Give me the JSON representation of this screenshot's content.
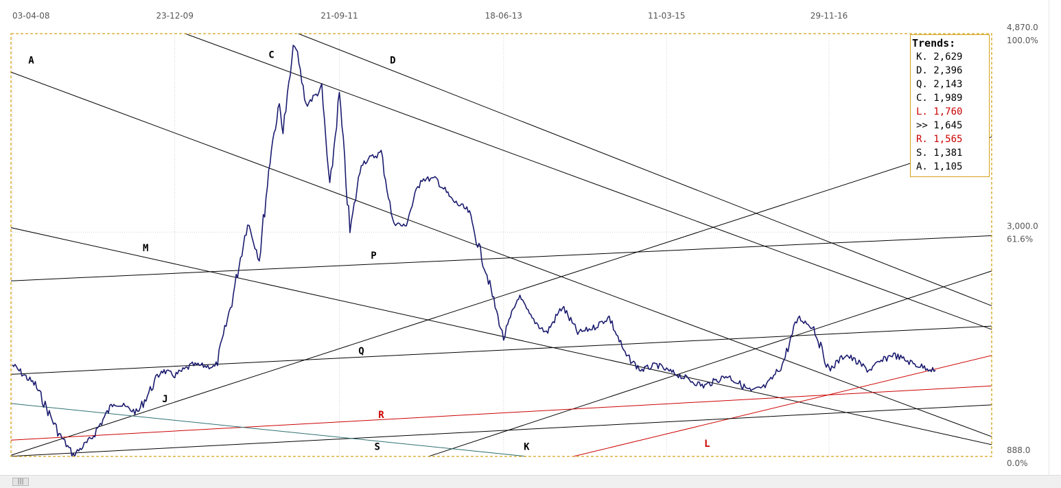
{
  "chart_data": {
    "type": "line",
    "x_ticks": [
      "03-04-08",
      "23-12-09",
      "21-09-11",
      "18-06-13",
      "11-03-15",
      "29-11-16"
    ],
    "y_ticks": [
      {
        "value": "4,870.0",
        "pct": "100.0%"
      },
      {
        "value": "3,000.0",
        "pct": "61.6%"
      },
      {
        "value": "888.0",
        "pct": "0.0%"
      }
    ],
    "ylim": [
      888,
      4870
    ],
    "grid": true,
    "legend_placement": "top-right",
    "series_color": "#1a1a6e",
    "price_points": [
      [
        "03-04-08",
        1750
      ],
      [
        "01-07-08",
        1560
      ],
      [
        "01-10-08",
        1100
      ],
      [
        "25-11-08",
        900
      ],
      [
        "01-02-09",
        1050
      ],
      [
        "01-05-09",
        1400
      ],
      [
        "01-08-09",
        1300
      ],
      [
        "01-11-09",
        1700
      ],
      [
        "23-12-09",
        1650
      ],
      [
        "01-03-10",
        1750
      ],
      [
        "01-06-10",
        1730
      ],
      [
        "01-08-10",
        2350
      ],
      [
        "01-10-10",
        3100
      ],
      [
        "15-11-10",
        2750
      ],
      [
        "01-01-11",
        3800
      ],
      [
        "01-02-11",
        4200
      ],
      [
        "15-02-11",
        3950
      ],
      [
        "01-04-11",
        4800
      ],
      [
        "15-05-11",
        4200
      ],
      [
        "15-07-11",
        4350
      ],
      [
        "15-08-11",
        3400
      ],
      [
        "21-09-11",
        4300
      ],
      [
        "01-11-11",
        3000
      ],
      [
        "15-12-11",
        3650
      ],
      [
        "01-03-12",
        3750
      ],
      [
        "15-04-12",
        3100
      ],
      [
        "01-06-12",
        3050
      ],
      [
        "01-08-12",
        3500
      ],
      [
        "01-10-12",
        3500
      ],
      [
        "01-12-12",
        3300
      ],
      [
        "01-02-13",
        3200
      ],
      [
        "15-04-13",
        2600
      ],
      [
        "01-06-13",
        2150
      ],
      [
        "18-06-13",
        2000
      ],
      [
        "15-08-13",
        2400
      ],
      [
        "01-10-13",
        2200
      ],
      [
        "01-12-13",
        2050
      ],
      [
        "01-02-14",
        2300
      ],
      [
        "01-04-14",
        2050
      ],
      [
        "01-06-14",
        2100
      ],
      [
        "01-08-14",
        2200
      ],
      [
        "01-10-14",
        1850
      ],
      [
        "01-12-14",
        1700
      ],
      [
        "01-02-15",
        1750
      ],
      [
        "11-03-15",
        1700
      ],
      [
        "01-05-15",
        1650
      ],
      [
        "01-08-15",
        1550
      ],
      [
        "01-11-15",
        1650
      ],
      [
        "01-02-16",
        1500
      ],
      [
        "01-04-16",
        1550
      ],
      [
        "01-06-16",
        1750
      ],
      [
        "01-08-16",
        2200
      ],
      [
        "01-10-16",
        2100
      ],
      [
        "29-11-16",
        1700
      ],
      [
        "01-02-17",
        1850
      ],
      [
        "01-05-17",
        1700
      ],
      [
        "01-08-17",
        1850
      ],
      [
        "01-11-17",
        1750
      ],
      [
        "15-01-18",
        1700
      ]
    ],
    "trendlines": [
      {
        "label": "A",
        "color": "#000000",
        "p1": [
          "15-03-08",
          4520
        ],
        "p2": [
          "15-03-19",
          888
        ]
      },
      {
        "label": "C",
        "color": "#000000",
        "p1": [
          "01-02-10",
          4870
        ],
        "p2": [
          "15-03-19",
          1900
        ]
      },
      {
        "label": "D",
        "color": "#000000",
        "p1": [
          "15-04-11",
          4870
        ],
        "p2": [
          "15-03-19",
          2110
        ]
      },
      {
        "label": "M",
        "color": "#000000",
        "p1": [
          "15-03-08",
          3050
        ],
        "p2": [
          "15-03-19",
          888
        ]
      },
      {
        "label": "P",
        "color": "#000000",
        "p1": [
          "15-03-08",
          2540
        ],
        "p2": [
          "15-03-19",
          2990
        ]
      },
      {
        "label": "Q",
        "color": "#000000",
        "p1": [
          "15-03-08",
          1660
        ],
        "p2": [
          "15-03-19",
          2140
        ]
      },
      {
        "label": "J",
        "color": "#000000",
        "p1": [
          "15-03-08",
          888
        ],
        "p2": [
          "15-03-19",
          4060
        ]
      },
      {
        "label": "K",
        "color": "#000000",
        "p1": [
          "01-09-12",
          888
        ],
        "p2": [
          "15-03-19",
          2800
        ]
      },
      {
        "label": "L",
        "color": "#cc0000",
        "p1": [
          "15-03-14",
          888
        ],
        "p2": [
          "15-03-19",
          1960
        ]
      },
      {
        "label": "R",
        "color": "#cc0000",
        "p1": [
          "15-03-08",
          1040
        ],
        "p2": [
          "15-03-19",
          1580
        ]
      },
      {
        "label": "S",
        "color": "#000000",
        "p1": [
          "15-03-08",
          888
        ],
        "p2": [
          "15-03-19",
          1400
        ]
      },
      {
        "label": "",
        "color": "#2f6f6f",
        "p1": [
          "15-03-08",
          1390
        ],
        "p2": [
          "15-09-13",
          888
        ]
      }
    ],
    "line_labels": [
      {
        "text": "A",
        "x": "15-06-08",
        "y": 4590,
        "color": "#000000"
      },
      {
        "text": "C",
        "x": "01-01-11",
        "y": 4640,
        "color": "#000000"
      },
      {
        "text": "D",
        "x": "15-04-12",
        "y": 4590,
        "color": "#000000"
      },
      {
        "text": "M",
        "x": "01-09-09",
        "y": 2820,
        "color": "#000000"
      },
      {
        "text": "P",
        "x": "01-02-12",
        "y": 2750,
        "color": "#000000"
      },
      {
        "text": "J",
        "x": "15-11-09",
        "y": 1400,
        "color": "#000000"
      },
      {
        "text": "Q",
        "x": "15-12-11",
        "y": 1850,
        "color": "#000000"
      },
      {
        "text": "R",
        "x": "01-03-12",
        "y": 1250,
        "color": "#cc0000"
      },
      {
        "text": "S",
        "x": "15-02-12",
        "y": 950,
        "color": "#000000"
      },
      {
        "text": "K",
        "x": "15-09-13",
        "y": 950,
        "color": "#000000"
      },
      {
        "text": "L",
        "x": "15-08-15",
        "y": 980,
        "color": "#cc0000"
      }
    ],
    "legend": {
      "title": "Trends:",
      "entries": [
        {
          "label": "K.",
          "value": "2,629",
          "color": "#000000"
        },
        {
          "label": "D.",
          "value": "2,396",
          "color": "#000000"
        },
        {
          "label": "Q.",
          "value": "2,143",
          "color": "#000000"
        },
        {
          "label": "C.",
          "value": "1,989",
          "color": "#000000"
        },
        {
          "label": "L.",
          "value": "1,760",
          "color": "#cc0000"
        },
        {
          "label": ">>",
          "value": "1,645",
          "color": "#000000"
        },
        {
          "label": "R.",
          "value": "1,565",
          "color": "#cc0000"
        },
        {
          "label": "S.",
          "value": "1,381",
          "color": "#000000"
        },
        {
          "label": "A.",
          "value": "1,105",
          "color": "#000000"
        }
      ]
    }
  },
  "scrollbar": {
    "thumb_label": "|||"
  }
}
